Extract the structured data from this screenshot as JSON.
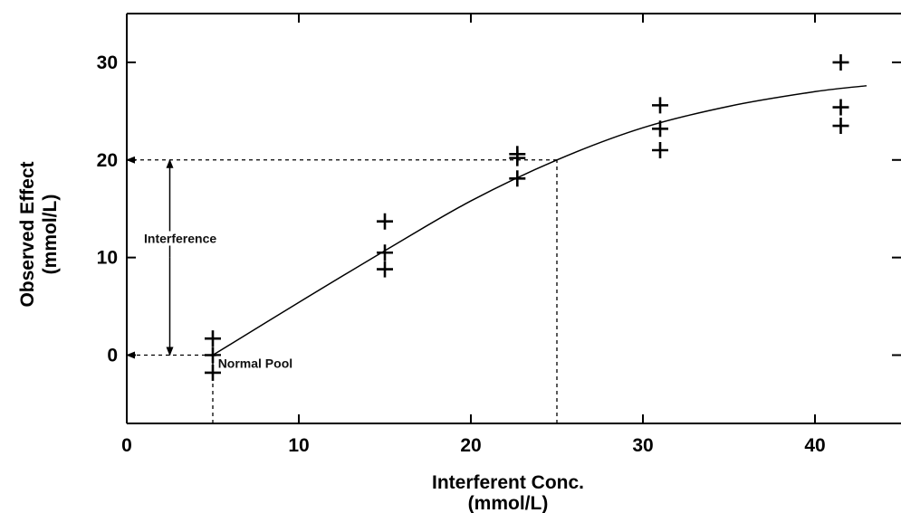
{
  "chart_data": {
    "type": "scatter",
    "xlabel": "Interferent Conc.",
    "xlabel_unit": "(mmol/L)",
    "ylabel": "Observed Effect",
    "ylabel_unit": "(mmol/L)",
    "xlim": [
      0,
      45
    ],
    "ylim": [
      -7,
      35
    ],
    "x_ticks": [
      0,
      10,
      20,
      30,
      40
    ],
    "y_ticks": [
      0,
      10,
      20,
      30
    ],
    "grid": false,
    "series": [
      {
        "marker": "plus",
        "points": [
          {
            "x": 5,
            "y": 1.7
          },
          {
            "x": 5,
            "y": 0
          },
          {
            "x": 5,
            "y": -1.8
          },
          {
            "x": 15,
            "y": 13.7
          },
          {
            "x": 15,
            "y": 10.5
          },
          {
            "x": 15,
            "y": 8.8
          },
          {
            "x": 22.7,
            "y": 20.6
          },
          {
            "x": 22.7,
            "y": 20.2
          },
          {
            "x": 22.7,
            "y": 18.1
          },
          {
            "x": 31,
            "y": 25.6
          },
          {
            "x": 31,
            "y": 23.2
          },
          {
            "x": 31,
            "y": 21
          },
          {
            "x": 41.5,
            "y": 30
          },
          {
            "x": 41.5,
            "y": 25.4
          },
          {
            "x": 41.5,
            "y": 23.5
          }
        ]
      },
      {
        "style": "solid-line",
        "points": [
          {
            "x": 5,
            "y": 0
          },
          {
            "x": 10,
            "y": 5.4
          },
          {
            "x": 15,
            "y": 10.7
          },
          {
            "x": 20,
            "y": 15.8
          },
          {
            "x": 25,
            "y": 20
          },
          {
            "x": 30,
            "y": 23.3
          },
          {
            "x": 35,
            "y": 25.5
          },
          {
            "x": 40,
            "y": 27
          },
          {
            "x": 43,
            "y": 27.6
          }
        ]
      }
    ],
    "reference_lines": [
      {
        "style": "dashed",
        "points": [
          {
            "x": 5,
            "y": -7
          },
          {
            "x": 5,
            "y": 0
          }
        ]
      },
      {
        "style": "dashed",
        "points": [
          {
            "x": 0,
            "y": 0
          },
          {
            "x": 5,
            "y": 0
          }
        ],
        "arrow": "start"
      },
      {
        "style": "dashed",
        "points": [
          {
            "x": 25,
            "y": -7
          },
          {
            "x": 25,
            "y": 20
          }
        ]
      },
      {
        "style": "dashed",
        "points": [
          {
            "x": 0,
            "y": 20
          },
          {
            "x": 25,
            "y": 20
          }
        ],
        "arrow": "start"
      }
    ],
    "interference_arrow": {
      "x": 2.5,
      "y_from": 0,
      "y_to": 20
    },
    "annotations": [
      {
        "text": "Interference",
        "x": 1,
        "y": 11.5
      },
      {
        "text": "Normal Pool",
        "x": 5.3,
        "y": -1.3
      }
    ]
  }
}
